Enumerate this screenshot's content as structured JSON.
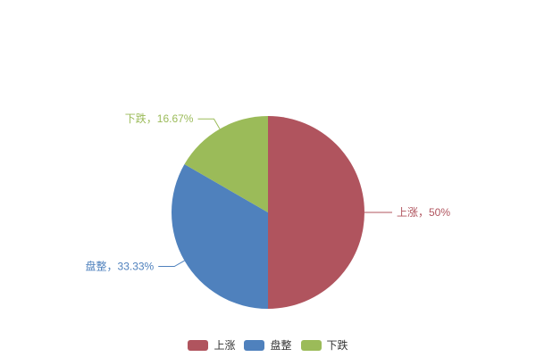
{
  "chart_data": {
    "type": "pie",
    "title": "",
    "categories": [
      "上涨",
      "盘整",
      "下跌"
    ],
    "values": [
      50,
      33.33,
      16.67
    ],
    "percent_labels": [
      "上涨，50%",
      "盘整，33.33%",
      "下跌，16.67%"
    ],
    "colors": [
      "#b0545e",
      "#4f81bd",
      "#9bbb59"
    ],
    "start_angle": "top",
    "clockwise": true,
    "legend_position": "bottom",
    "legend_items": [
      "上涨",
      "盘整",
      "下跌"
    ],
    "legend_text_color": "#333333",
    "background_color": "#ffffff"
  }
}
